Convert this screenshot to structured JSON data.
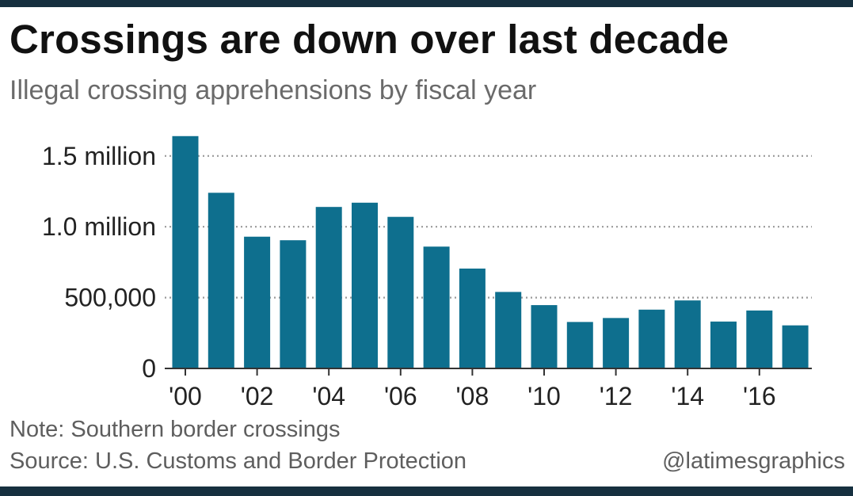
{
  "title": "Crossings are down over last decade",
  "subtitle": "Illegal crossing apprehensions by fiscal year",
  "note": "Note: Southern border crossings",
  "source": "Source: U.S. Customs and Border Protection",
  "credit": "@latimesgraphics",
  "colors": {
    "bar": "#0e6f8e",
    "frame": "#16303f",
    "grid": "#9a9a9a"
  },
  "chart_data": {
    "type": "bar",
    "title": "Crossings are down over last decade",
    "subtitle": "Illegal crossing apprehensions by fiscal year",
    "xlabel": "",
    "ylabel": "",
    "categories": [
      "2000",
      "2001",
      "2002",
      "2003",
      "2004",
      "2005",
      "2006",
      "2007",
      "2008",
      "2009",
      "2010",
      "2011",
      "2012",
      "2013",
      "2014",
      "2015",
      "2016",
      "2017"
    ],
    "values": [
      1640000,
      1240000,
      930000,
      905000,
      1140000,
      1170000,
      1070000,
      860000,
      705000,
      540000,
      447000,
      328000,
      356000,
      415000,
      480000,
      331000,
      409000,
      304000
    ],
    "ylim": [
      0,
      1650000
    ],
    "yticks": [
      {
        "value": 0,
        "label": "0"
      },
      {
        "value": 500000,
        "label": "500,000"
      },
      {
        "value": 1000000,
        "label": "1.0 million"
      },
      {
        "value": 1500000,
        "label": "1.5 million"
      }
    ],
    "xticks": [
      {
        "index": 0,
        "label": "'00"
      },
      {
        "index": 2,
        "label": "'02"
      },
      {
        "index": 4,
        "label": "'04"
      },
      {
        "index": 6,
        "label": "'06"
      },
      {
        "index": 8,
        "label": "'08"
      },
      {
        "index": 10,
        "label": "'10"
      },
      {
        "index": 12,
        "label": "'12"
      },
      {
        "index": 14,
        "label": "'14"
      },
      {
        "index": 16,
        "label": "'16"
      }
    ],
    "grid": true,
    "legend": "none"
  }
}
